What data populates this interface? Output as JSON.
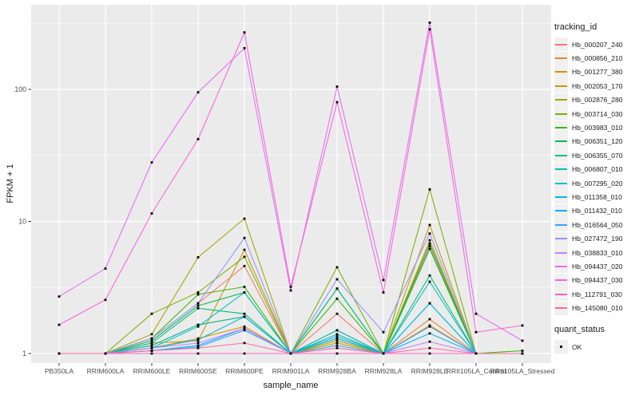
{
  "chart_data": {
    "type": "line",
    "title": "",
    "xlabel": "sample_name",
    "ylabel": "FPKM + 1",
    "y_scale": "log10",
    "y_ticks": [
      1,
      10,
      100
    ],
    "y_minor_ticks": [
      3.1623,
      31.623,
      316.23
    ],
    "ylim": [
      0.85,
      440
    ],
    "grid": true,
    "panel_bg": "#EBEBEB",
    "grid_color": "#FFFFFF",
    "tick_text_color": "#4D4D4D",
    "point_color": "#000000",
    "categories": [
      "PB350LA",
      "RRIM600LA",
      "RRIM600LE",
      "RRIM600SE",
      "RRIM600PE",
      "RRIM901LA",
      "RRIM928BA",
      "RRIM928LA",
      "RRIM928LE",
      "RRII105LA_Control",
      "RRII105LA_Stressed"
    ],
    "series": [
      {
        "name": "Hb_000207_240",
        "color": "#F8766D",
        "values": [
          1,
          1,
          1.3,
          2.4,
          4.6,
          1,
          2.0,
          1,
          6.5,
          1,
          1
        ]
      },
      {
        "name": "Hb_000856_210",
        "color": "#EA8331",
        "values": [
          1,
          1,
          1.15,
          1.65,
          1.9,
          1,
          1.5,
          1,
          1.82,
          1,
          1
        ]
      },
      {
        "name": "Hb_001277_380",
        "color": "#D89000",
        "values": [
          1,
          1,
          1.1,
          1.3,
          1.6,
          1,
          1.3,
          1,
          1.63,
          1,
          1
        ]
      },
      {
        "name": "Hb_002053_170",
        "color": "#C09B00",
        "values": [
          1,
          1,
          1.2,
          1.25,
          6.1,
          1,
          1.2,
          1,
          9.4,
          1,
          1
        ]
      },
      {
        "name": "Hb_002876_280",
        "color": "#A3A500",
        "values": [
          1,
          1,
          1.4,
          5.35,
          10.5,
          1,
          1.25,
          1,
          7.2,
          1,
          1
        ]
      },
      {
        "name": "Hb_003714_030",
        "color": "#7CAE00",
        "values": [
          1,
          1,
          2.0,
          2.9,
          5.4,
          1,
          4.5,
          1,
          17.5,
          1,
          1
        ]
      },
      {
        "name": "Hb_003983_010",
        "color": "#39B600",
        "values": [
          1,
          1,
          1.3,
          2.8,
          3.2,
          1,
          2.6,
          1,
          6.8,
          1,
          1.05
        ]
      },
      {
        "name": "Hb_006351_120",
        "color": "#00BB4E",
        "values": [
          1,
          1,
          1.25,
          2.3,
          2.9,
          1,
          3.1,
          1,
          6.2,
          1,
          1
        ]
      },
      {
        "name": "Hb_006355_070",
        "color": "#00BF7D",
        "values": [
          1,
          1,
          1.2,
          2.2,
          2.0,
          1,
          3.1,
          1,
          3.9,
          1,
          1
        ]
      },
      {
        "name": "Hb_006807_010",
        "color": "#00C1A3",
        "values": [
          1,
          1,
          1.15,
          1.65,
          1.9,
          1,
          1.4,
          1,
          2.4,
          1,
          1
        ]
      },
      {
        "name": "Hb_007295_020",
        "color": "#00BFC4",
        "values": [
          1,
          1,
          1.1,
          1.6,
          2.9,
          1,
          1.5,
          1,
          3.5,
          1,
          1
        ]
      },
      {
        "name": "Hb_011358_010",
        "color": "#00BAE0",
        "values": [
          1,
          1,
          1.1,
          1.27,
          1.9,
          1,
          1.35,
          1,
          2.4,
          1,
          1
        ]
      },
      {
        "name": "Hb_011432_010",
        "color": "#00B0F6",
        "values": [
          1,
          1,
          1.05,
          1.15,
          1.55,
          1,
          1.3,
          1,
          1.42,
          1,
          1
        ]
      },
      {
        "name": "Hb_016564_050",
        "color": "#35A2FF",
        "values": [
          1,
          1,
          1.05,
          1.12,
          1.5,
          1,
          1.15,
          1,
          1.6,
          1,
          1
        ]
      },
      {
        "name": "Hb_027472_190",
        "color": "#9590FF",
        "values": [
          1,
          1,
          1.3,
          2.4,
          7.5,
          1,
          3.65,
          1.45,
          8.1,
          1,
          1
        ]
      },
      {
        "name": "Hb_038833_010",
        "color": "#C77CFF",
        "values": [
          1,
          1,
          1.1,
          1.2,
          1.55,
          1,
          1.1,
          1,
          1.23,
          1,
          1
        ]
      },
      {
        "name": "Hb_094437_020",
        "color": "#E76BF3",
        "values": [
          2.7,
          4.4,
          28,
          95,
          205,
          3.0,
          105,
          3.6,
          320,
          2.0,
          1.25
        ]
      },
      {
        "name": "Hb_094437_030",
        "color": "#FA62DB",
        "values": [
          1.65,
          2.55,
          11.5,
          42,
          270,
          3.2,
          80,
          2.9,
          285,
          1.45,
          1.63
        ]
      },
      {
        "name": "Hb_112791_030",
        "color": "#FF62BC",
        "values": [
          1,
          1,
          1,
          1,
          1,
          1,
          1,
          1,
          1,
          1,
          1
        ]
      },
      {
        "name": "Hb_145080_010",
        "color": "#FF6A98",
        "values": [
          1,
          1,
          1.05,
          1.1,
          1.2,
          1,
          1.1,
          1,
          1.1,
          1,
          1
        ]
      }
    ],
    "legend": {
      "color_title": "tracking_id",
      "shape_title": "quant_status",
      "shape_items": [
        {
          "label": "OK"
        }
      ],
      "position": "right"
    }
  }
}
